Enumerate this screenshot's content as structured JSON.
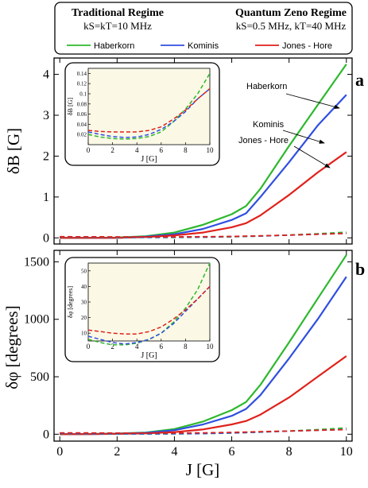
{
  "legend": {
    "traditional_title": "Traditional Regime",
    "traditional_params": "kS=kT=10 MHz",
    "zeno_title": "Quantum Zeno Regime",
    "zeno_params": "kS=0.5 MHz, kT=40 MHz",
    "entries": [
      {
        "name": "Haberkorn",
        "color": "#2db82d"
      },
      {
        "name": "Kominis",
        "color": "#2f4fe0"
      },
      {
        "name": "Jones - Hore",
        "color": "#e0211b"
      }
    ]
  },
  "chart_data": [
    {
      "type": "line",
      "panel_label": "a",
      "ylabel": "δB [G]",
      "xlabel": "",
      "xlim": [
        -0.2,
        10.2
      ],
      "ylim": [
        -0.15,
        4.4
      ],
      "xticks": [
        0,
        2,
        4,
        6,
        8,
        10
      ],
      "yticks": [
        0,
        1,
        2,
        3,
        4
      ],
      "x": [
        0,
        1,
        2,
        3,
        4,
        5,
        6,
        6.5,
        7,
        8,
        9,
        10
      ],
      "series": [
        {
          "name": "Haberkorn",
          "color": "#2db82d",
          "style": "solid",
          "values": [
            0.0,
            0.0,
            0.01,
            0.04,
            0.13,
            0.32,
            0.58,
            0.78,
            1.2,
            2.25,
            3.25,
            4.25
          ]
        },
        {
          "name": "Kominis",
          "color": "#2f4fe0",
          "style": "solid",
          "values": [
            0.0,
            0.0,
            0.0,
            0.03,
            0.09,
            0.22,
            0.44,
            0.6,
            1.0,
            1.85,
            2.75,
            3.5
          ]
        },
        {
          "name": "Jones - Hore",
          "color": "#e0211b",
          "style": "solid",
          "values": [
            0.0,
            0.0,
            0.0,
            0.02,
            0.06,
            0.13,
            0.26,
            0.36,
            0.55,
            1.05,
            1.6,
            2.1
          ]
        },
        {
          "name": "Haberkorn",
          "color": "#2db82d",
          "style": "dashed",
          "values": [
            0.02,
            0.015,
            0.01,
            0.01,
            0.01,
            0.015,
            0.025,
            0.035,
            0.045,
            0.07,
            0.1,
            0.14
          ]
        },
        {
          "name": "Kominis",
          "color": "#2f4fe0",
          "style": "dashed",
          "values": [
            0.025,
            0.02,
            0.015,
            0.013,
            0.015,
            0.02,
            0.03,
            0.038,
            0.045,
            0.065,
            0.09,
            0.11
          ]
        },
        {
          "name": "Jones - Hore",
          "color": "#e0211b",
          "style": "dashed",
          "values": [
            0.028,
            0.026,
            0.025,
            0.025,
            0.025,
            0.028,
            0.035,
            0.042,
            0.05,
            0.068,
            0.09,
            0.11
          ]
        }
      ],
      "annotations": [
        "Haberkorn",
        "Kominis",
        "Jones - Hore"
      ],
      "inset": {
        "xlabel": "J [G]",
        "ylabel": "δB [G]",
        "xlim": [
          0,
          10
        ],
        "ylim": [
          0.0,
          0.15
        ],
        "xticks": [
          0,
          2,
          4,
          6,
          8,
          10
        ],
        "yticks": [
          0.02,
          0.04,
          0.06,
          0.08,
          0.1,
          0.12,
          0.14
        ],
        "x": [
          0,
          1,
          2,
          3,
          4,
          5,
          6,
          7,
          8,
          9,
          10
        ],
        "series": [
          {
            "name": "Haberkorn",
            "color": "#2db82d",
            "values": [
              0.02,
              0.015,
              0.012,
              0.011,
              0.012,
              0.016,
              0.025,
              0.045,
              0.07,
              0.1,
              0.14
            ]
          },
          {
            "name": "Kominis",
            "color": "#2f4fe0",
            "values": [
              0.025,
              0.02,
              0.016,
              0.014,
              0.015,
              0.02,
              0.03,
              0.045,
              0.065,
              0.09,
              0.11
            ]
          },
          {
            "name": "Jones - Hore",
            "color": "#e0211b",
            "values": [
              0.028,
              0.026,
              0.025,
              0.025,
              0.025,
              0.028,
              0.035,
              0.05,
              0.068,
              0.09,
              0.11
            ]
          }
        ]
      }
    },
    {
      "type": "line",
      "panel_label": "b",
      "ylabel": "δφ [degrees]",
      "xlabel": "J [G]",
      "xlim": [
        -0.2,
        10.2
      ],
      "ylim": [
        -60,
        1600
      ],
      "xticks": [
        0,
        2,
        4,
        6,
        8,
        10
      ],
      "yticks": [
        0,
        500,
        1000,
        1500
      ],
      "x": [
        0,
        1,
        2,
        3,
        4,
        5,
        6,
        6.5,
        7,
        8,
        9,
        10
      ],
      "series": [
        {
          "name": "Haberkorn",
          "color": "#2db82d",
          "style": "solid",
          "values": [
            0,
            2,
            6,
            15,
            45,
            110,
            210,
            280,
            430,
            800,
            1180,
            1560
          ]
        },
        {
          "name": "Kominis",
          "color": "#2f4fe0",
          "style": "solid",
          "values": [
            0,
            1,
            4,
            12,
            35,
            85,
            160,
            220,
            340,
            660,
            1000,
            1370
          ]
        },
        {
          "name": "Jones - Hore",
          "color": "#e0211b",
          "style": "solid",
          "values": [
            0,
            1,
            3,
            7,
            18,
            42,
            85,
            115,
            170,
            320,
            500,
            680
          ]
        },
        {
          "name": "Haberkorn",
          "color": "#2db82d",
          "style": "dashed",
          "values": [
            6,
            4,
            2,
            2,
            3,
            5,
            10,
            14,
            18,
            28,
            40,
            55
          ]
        },
        {
          "name": "Kominis",
          "color": "#2f4fe0",
          "style": "dashed",
          "values": [
            8,
            6,
            4,
            3,
            4,
            6,
            11,
            15,
            19,
            27,
            34,
            41
          ]
        },
        {
          "name": "Jones - Hore",
          "color": "#e0211b",
          "style": "dashed",
          "values": [
            12,
            11,
            10,
            10,
            10,
            12,
            16,
            19,
            22,
            28,
            34,
            40
          ]
        }
      ],
      "inset": {
        "xlabel": "J [G]",
        "ylabel": "δφ [degrees]",
        "xlim": [
          0,
          10
        ],
        "ylim": [
          5,
          55
        ],
        "xticks": [
          0,
          2,
          4,
          6,
          8,
          10
        ],
        "yticks": [
          10,
          20,
          30,
          40,
          50
        ],
        "x": [
          0,
          1,
          2,
          3,
          4,
          5,
          6,
          7,
          8,
          9,
          10
        ],
        "series": [
          {
            "name": "Haberkorn",
            "color": "#2db82d",
            "values": [
              6,
              4,
              2.5,
              2.5,
              3.5,
              6,
              10,
              17,
              26,
              38,
              55
            ]
          },
          {
            "name": "Kominis",
            "color": "#2f4fe0",
            "values": [
              8,
              6,
              4,
              3,
              4,
              6,
              10,
              16,
              24,
              32,
              40
            ]
          },
          {
            "name": "Jones - Hore",
            "color": "#e0211b",
            "values": [
              12,
              11,
              10,
              9.5,
              9.5,
              11,
              14,
              19,
              25,
              32,
              40
            ]
          }
        ]
      }
    }
  ]
}
